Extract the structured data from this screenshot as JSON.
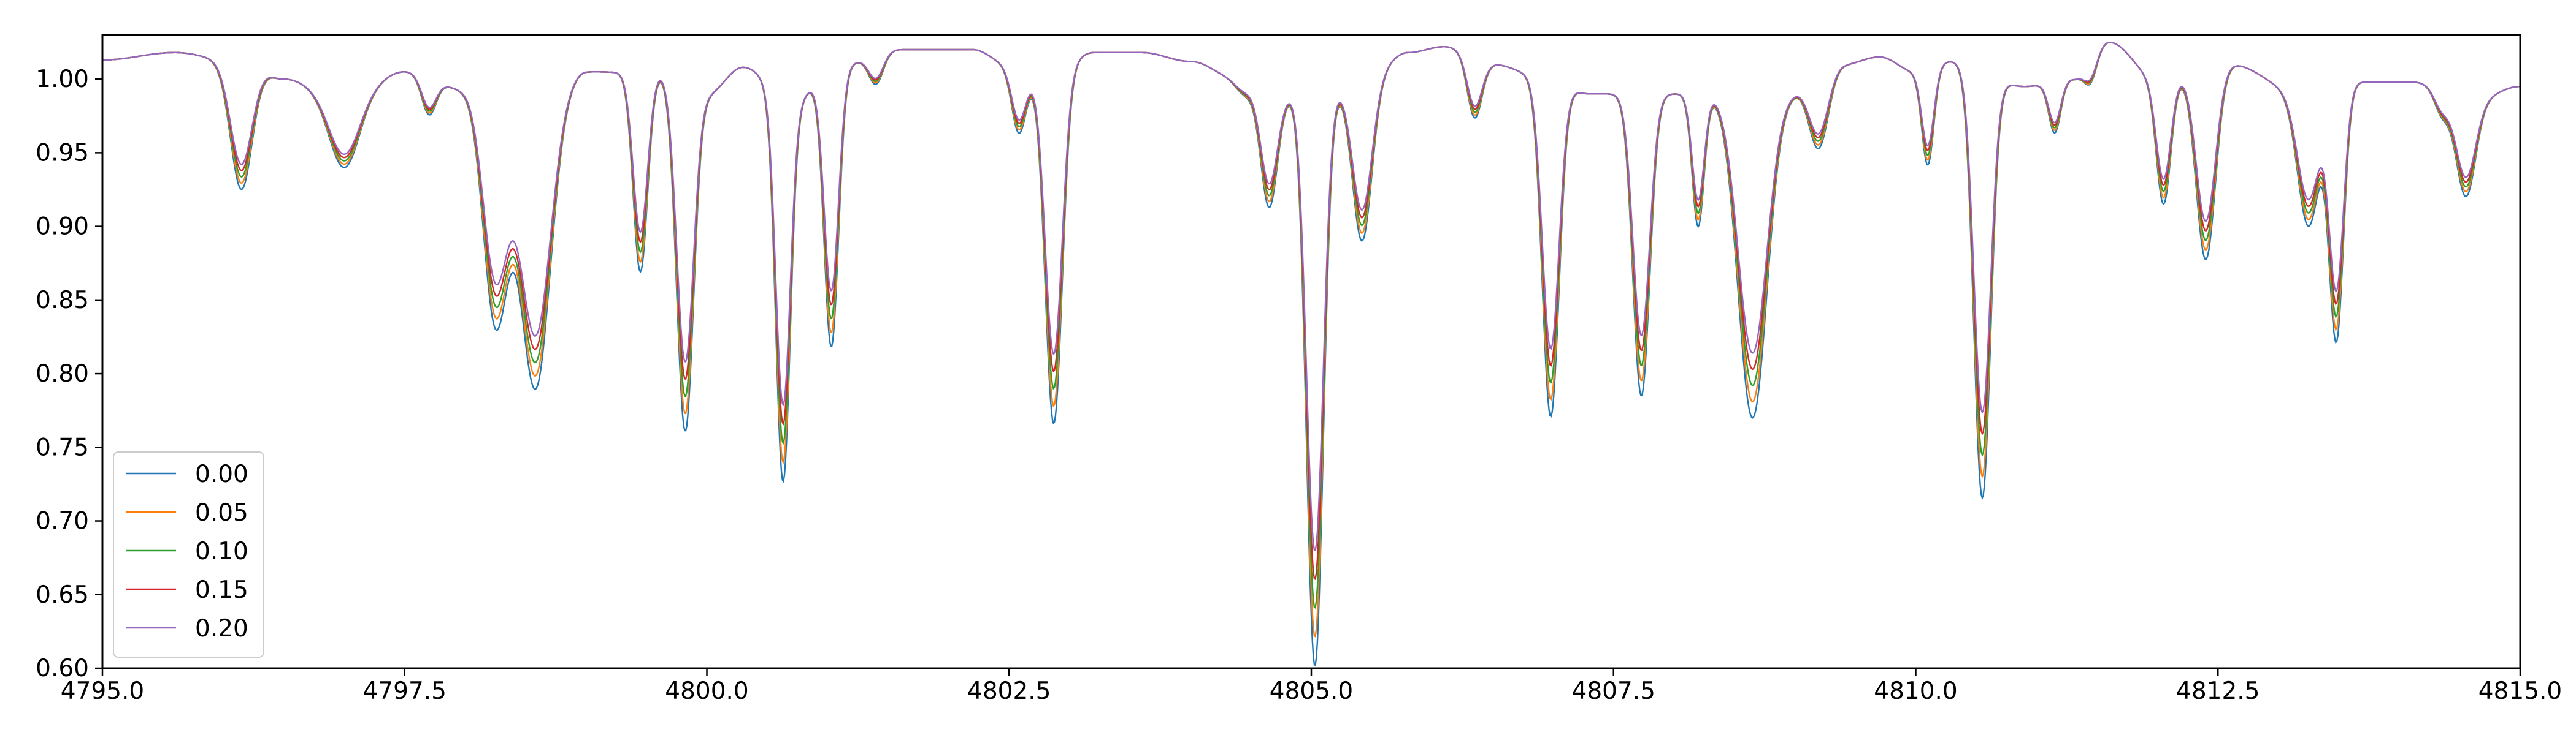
{
  "chart_data": {
    "type": "line",
    "title": "",
    "xlabel": "",
    "ylabel": "",
    "xlim": [
      4795.0,
      4815.0
    ],
    "ylim": [
      0.6,
      1.03
    ],
    "x_ticks": [
      "4795.0",
      "4797.5",
      "4800.0",
      "4802.5",
      "4805.0",
      "4807.5",
      "4810.0",
      "4812.5",
      "4815.0"
    ],
    "y_ticks": [
      "0.60",
      "0.65",
      "0.70",
      "0.75",
      "0.80",
      "0.85",
      "0.90",
      "0.95",
      "1.00"
    ],
    "grid": false,
    "legend_position": "lower-left",
    "continuum": [
      [
        4795.0,
        1.013
      ],
      [
        4795.6,
        1.018
      ],
      [
        4796.2,
        1.01
      ],
      [
        4796.5,
        1.0
      ],
      [
        4797.0,
        0.985
      ],
      [
        4797.5,
        1.005
      ],
      [
        4798.0,
        0.993
      ],
      [
        4798.6,
        0.97
      ],
      [
        4799.0,
        1.005
      ],
      [
        4799.6,
        1.004
      ],
      [
        4800.0,
        0.99
      ],
      [
        4800.3,
        1.008
      ],
      [
        4800.7,
        0.985
      ],
      [
        4801.1,
        1.01
      ],
      [
        4801.6,
        1.02
      ],
      [
        4802.2,
        1.02
      ],
      [
        4802.5,
        1.01
      ],
      [
        4802.8,
        1.0
      ],
      [
        4803.2,
        1.018
      ],
      [
        4803.6,
        1.018
      ],
      [
        4804.0,
        1.012
      ],
      [
        4804.4,
        1.0
      ],
      [
        4804.8,
        0.99
      ],
      [
        4805.4,
        0.995
      ],
      [
        4805.8,
        1.018
      ],
      [
        4806.1,
        1.022
      ],
      [
        4806.5,
        1.01
      ],
      [
        4806.9,
        1.002
      ],
      [
        4807.3,
        0.99
      ],
      [
        4807.9,
        0.99
      ],
      [
        4808.4,
        0.99
      ],
      [
        4808.9,
        0.99
      ],
      [
        4809.4,
        1.01
      ],
      [
        4809.7,
        1.015
      ],
      [
        4810.0,
        1.005
      ],
      [
        4810.3,
        1.012
      ],
      [
        4810.9,
        0.995
      ],
      [
        4811.3,
        1.0
      ],
      [
        4811.6,
        1.025
      ],
      [
        4812.0,
        1.0
      ],
      [
        4812.6,
        1.01
      ],
      [
        4813.2,
        0.99
      ],
      [
        4813.7,
        0.998
      ],
      [
        4814.1,
        0.998
      ],
      [
        4814.6,
        0.985
      ],
      [
        4815.0,
        0.995
      ]
    ],
    "lines": [
      {
        "center": 4796.15,
        "width": 0.09,
        "depth_at_0": 0.085
      },
      {
        "center": 4797.0,
        "width": 0.12,
        "depth_at_0": 0.045
      },
      {
        "center": 4797.7,
        "width": 0.06,
        "depth_at_0": 0.025
      },
      {
        "center": 4798.25,
        "width": 0.1,
        "depth_at_0": 0.15
      },
      {
        "center": 4798.58,
        "width": 0.12,
        "depth_at_0": 0.18
      },
      {
        "center": 4799.45,
        "width": 0.06,
        "depth_at_0": 0.135
      },
      {
        "center": 4799.82,
        "width": 0.07,
        "depth_at_0": 0.235
      },
      {
        "center": 4800.63,
        "width": 0.06,
        "depth_at_0": 0.26
      },
      {
        "center": 4801.03,
        "width": 0.06,
        "depth_at_0": 0.19
      },
      {
        "center": 4801.4,
        "width": 0.06,
        "depth_at_0": 0.02
      },
      {
        "center": 4802.58,
        "width": 0.06,
        "depth_at_0": 0.045
      },
      {
        "center": 4802.87,
        "width": 0.07,
        "depth_at_0": 0.235
      },
      {
        "center": 4804.45,
        "width": 0.07,
        "depth_at_0": 0.01
      },
      {
        "center": 4804.65,
        "width": 0.07,
        "depth_at_0": 0.08
      },
      {
        "center": 4805.03,
        "width": 0.07,
        "depth_at_0": 0.39
      },
      {
        "center": 4805.42,
        "width": 0.08,
        "depth_at_0": 0.105
      },
      {
        "center": 4806.35,
        "width": 0.06,
        "depth_at_0": 0.04
      },
      {
        "center": 4806.98,
        "width": 0.07,
        "depth_at_0": 0.23
      },
      {
        "center": 4807.73,
        "width": 0.07,
        "depth_at_0": 0.205
      },
      {
        "center": 4808.2,
        "width": 0.05,
        "depth_at_0": 0.09
      },
      {
        "center": 4808.65,
        "width": 0.12,
        "depth_at_0": 0.22
      },
      {
        "center": 4809.2,
        "width": 0.08,
        "depth_at_0": 0.05
      },
      {
        "center": 4810.1,
        "width": 0.05,
        "depth_at_0": 0.065
      },
      {
        "center": 4810.55,
        "width": 0.07,
        "depth_at_0": 0.29
      },
      {
        "center": 4811.15,
        "width": 0.05,
        "depth_at_0": 0.035
      },
      {
        "center": 4811.45,
        "width": 0.05,
        "depth_at_0": 0.015
      },
      {
        "center": 4812.05,
        "width": 0.06,
        "depth_at_0": 0.085
      },
      {
        "center": 4812.4,
        "width": 0.08,
        "depth_at_0": 0.13
      },
      {
        "center": 4813.25,
        "width": 0.09,
        "depth_at_0": 0.09
      },
      {
        "center": 4813.48,
        "width": 0.06,
        "depth_at_0": 0.17
      },
      {
        "center": 4814.35,
        "width": 0.06,
        "depth_at_0": 0.015
      },
      {
        "center": 4814.55,
        "width": 0.08,
        "depth_at_0": 0.065
      }
    ],
    "series": [
      {
        "name": "0.00",
        "color": "#1f77b4",
        "depth_scale": 1.0
      },
      {
        "name": "0.05",
        "color": "#ff7f0e",
        "depth_scale": 0.95
      },
      {
        "name": "0.10",
        "color": "#2ca02c",
        "depth_scale": 0.9
      },
      {
        "name": "0.15",
        "color": "#d62728",
        "depth_scale": 0.85
      },
      {
        "name": "0.20",
        "color": "#9467bd",
        "depth_scale": 0.8
      }
    ]
  }
}
